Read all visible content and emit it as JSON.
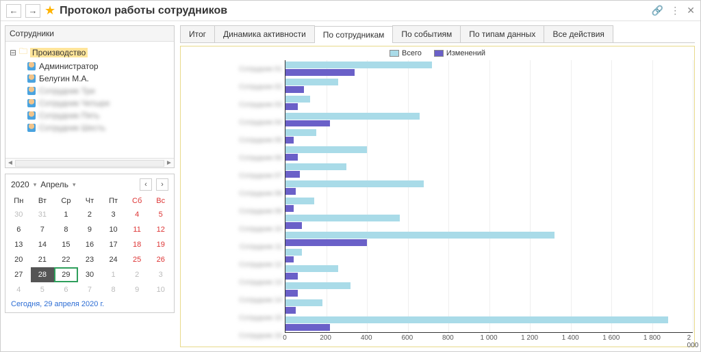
{
  "title": "Протокол работы сотрудников",
  "sidebar": {
    "header": "Сотрудники",
    "root_label": "Производство",
    "items": [
      {
        "label": "Администратор",
        "blurred": false
      },
      {
        "label": "Белугин М.А.",
        "blurred": false
      },
      {
        "label": "Сотрудник Три",
        "blurred": true
      },
      {
        "label": "Сотрудник Четыре",
        "blurred": true
      },
      {
        "label": "Сотрудник Пять",
        "blurred": true
      },
      {
        "label": "Сотрудник Шесть",
        "blurred": true
      }
    ]
  },
  "calendar": {
    "year": "2020",
    "month": "Апрель",
    "day_headers": [
      "Пн",
      "Вт",
      "Ср",
      "Чт",
      "Пт",
      "Сб",
      "Вс"
    ],
    "weeks": [
      [
        {
          "d": "30",
          "o": true
        },
        {
          "d": "31",
          "o": true
        },
        {
          "d": "1"
        },
        {
          "d": "2"
        },
        {
          "d": "3"
        },
        {
          "d": "4",
          "w": true
        },
        {
          "d": "5",
          "w": true
        }
      ],
      [
        {
          "d": "6"
        },
        {
          "d": "7"
        },
        {
          "d": "8"
        },
        {
          "d": "9"
        },
        {
          "d": "10"
        },
        {
          "d": "11",
          "w": true
        },
        {
          "d": "12",
          "w": true
        }
      ],
      [
        {
          "d": "13"
        },
        {
          "d": "14"
        },
        {
          "d": "15"
        },
        {
          "d": "16"
        },
        {
          "d": "17"
        },
        {
          "d": "18",
          "w": true
        },
        {
          "d": "19",
          "w": true
        }
      ],
      [
        {
          "d": "20"
        },
        {
          "d": "21"
        },
        {
          "d": "22"
        },
        {
          "d": "23"
        },
        {
          "d": "24"
        },
        {
          "d": "25",
          "w": true
        },
        {
          "d": "26",
          "w": true
        }
      ],
      [
        {
          "d": "27"
        },
        {
          "d": "28",
          "sd": true
        },
        {
          "d": "29",
          "so": true
        },
        {
          "d": "30"
        },
        {
          "d": "1",
          "o": true
        },
        {
          "d": "2",
          "o": true,
          "w": true
        },
        {
          "d": "3",
          "o": true,
          "w": true
        }
      ],
      [
        {
          "d": "4",
          "o": true
        },
        {
          "d": "5",
          "o": true
        },
        {
          "d": "6",
          "o": true
        },
        {
          "d": "7",
          "o": true
        },
        {
          "d": "8",
          "o": true
        },
        {
          "d": "9",
          "o": true,
          "w": true
        },
        {
          "d": "10",
          "o": true,
          "w": true
        }
      ]
    ],
    "today_label": "Сегодня, 29 апреля 2020 г."
  },
  "tabs": [
    {
      "label": "Итог"
    },
    {
      "label": "Динамика активности"
    },
    {
      "label": "По сотрудникам",
      "active": true
    },
    {
      "label": "По событиям"
    },
    {
      "label": "По типам данных"
    },
    {
      "label": "Все действия"
    }
  ],
  "chart": {
    "type": "bar-horizontal-grouped",
    "legend": [
      {
        "label": "Всего",
        "color": "#a9dbe8"
      },
      {
        "label": "Изменений",
        "color": "#6a60c8"
      }
    ],
    "colors": {
      "total": "#a9dbe8",
      "changes": "#6a60c8",
      "grid": "#eeeeee",
      "axis": "#333333",
      "frame": "#e8d98a"
    },
    "x_axis": {
      "min": 0,
      "max": 2000,
      "step": 200,
      "ticks": [
        0,
        200,
        400,
        600,
        800,
        1000,
        1200,
        1400,
        1600,
        1800,
        2000
      ]
    },
    "tick_labels": [
      "0",
      "200",
      "400",
      "600",
      "800",
      "1 000",
      "1 200",
      "1 400",
      "1 600",
      "1 800",
      "2 000"
    ],
    "rows": [
      {
        "label": "Сотрудник 01",
        "total": 720,
        "changes": 340
      },
      {
        "label": "Сотрудник 02",
        "total": 260,
        "changes": 90
      },
      {
        "label": "Сотрудник 03",
        "total": 120,
        "changes": 60
      },
      {
        "label": "Сотрудник 04",
        "total": 660,
        "changes": 220
      },
      {
        "label": "Сотрудник 05",
        "total": 150,
        "changes": 40
      },
      {
        "label": "Сотрудник 06",
        "total": 400,
        "changes": 60
      },
      {
        "label": "Сотрудник 07",
        "total": 300,
        "changes": 70
      },
      {
        "label": "Сотрудник 08",
        "total": 680,
        "changes": 50
      },
      {
        "label": "Сотрудник 09",
        "total": 140,
        "changes": 40
      },
      {
        "label": "Сотрудник 10",
        "total": 560,
        "changes": 80
      },
      {
        "label": "Сотрудник 11",
        "total": 1320,
        "changes": 400
      },
      {
        "label": "Сотрудник 12",
        "total": 80,
        "changes": 40
      },
      {
        "label": "Сотрудник 13",
        "total": 260,
        "changes": 60
      },
      {
        "label": "Сотрудник 14",
        "total": 320,
        "changes": 60
      },
      {
        "label": "Сотрудник 15",
        "total": 180,
        "changes": 50
      },
      {
        "label": "Сотрудник 16",
        "total": 1880,
        "changes": 220
      }
    ]
  }
}
